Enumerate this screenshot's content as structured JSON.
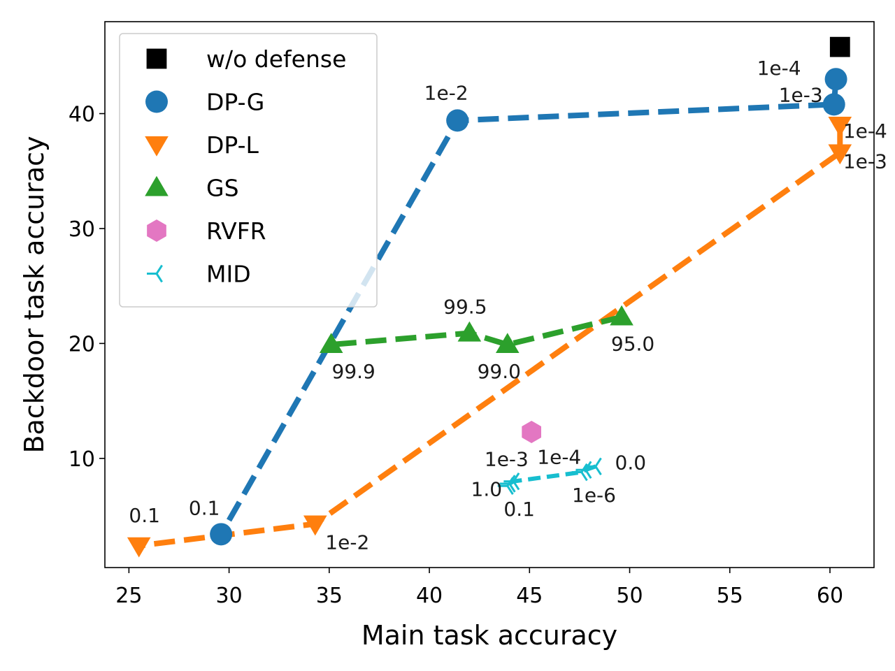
{
  "chart_data": {
    "type": "scatter",
    "xlabel": "Main task accuracy",
    "ylabel": "Backdoor task accuracy",
    "xlim": [
      23.8,
      62.2
    ],
    "ylim": [
      0.5,
      48.0
    ],
    "xticks": [
      25,
      30,
      35,
      40,
      45,
      50,
      55,
      60
    ],
    "yticks": [
      10,
      20,
      30,
      40
    ],
    "grid": false,
    "legend_position": "top-left",
    "series": [
      {
        "name": "w/o defense",
        "color": "#000000",
        "marker": "square",
        "line": false,
        "points": [
          {
            "x": 60.5,
            "y": 45.8,
            "label": ""
          }
        ]
      },
      {
        "name": "DP-G",
        "color": "#1f77b4",
        "marker": "circle",
        "line": true,
        "points": [
          {
            "x": 60.3,
            "y": 43.0,
            "label": "1e-4"
          },
          {
            "x": 60.2,
            "y": 40.8,
            "label": "1e-3"
          },
          {
            "x": 41.4,
            "y": 39.4,
            "label": "1e-2"
          },
          {
            "x": 29.6,
            "y": 3.4,
            "label": "0.1"
          }
        ]
      },
      {
        "name": "DP-L",
        "color": "#ff7f0e",
        "marker": "triangle-down",
        "line": true,
        "points": [
          {
            "x": 60.5,
            "y": 39.0,
            "label": "1e-4"
          },
          {
            "x": 60.5,
            "y": 36.6,
            "label": "1e-3"
          },
          {
            "x": 34.3,
            "y": 4.3,
            "label": "1e-2"
          },
          {
            "x": 25.5,
            "y": 2.4,
            "label": "0.1"
          }
        ]
      },
      {
        "name": "GS",
        "color": "#2ca02c",
        "marker": "triangle-up",
        "line": true,
        "points": [
          {
            "x": 49.6,
            "y": 22.3,
            "label": "95.0"
          },
          {
            "x": 43.9,
            "y": 19.9,
            "label": "99.0"
          },
          {
            "x": 42.0,
            "y": 20.9,
            "label": "99.5"
          },
          {
            "x": 35.1,
            "y": 19.9,
            "label": "99.9"
          }
        ]
      },
      {
        "name": "RVFR",
        "color": "#e377c2",
        "marker": "hexagon",
        "line": false,
        "points": [
          {
            "x": 45.1,
            "y": 12.3,
            "label": ""
          }
        ]
      },
      {
        "name": "MID",
        "color": "#17becf",
        "marker": "tri-left",
        "line": true,
        "points": [
          {
            "x": 48.3,
            "y": 9.3,
            "label": "0.0"
          },
          {
            "x": 47.8,
            "y": 9.0,
            "label": "1e-6"
          },
          {
            "x": 47.6,
            "y": 8.8,
            "label": "1e-4"
          },
          {
            "x": 44.2,
            "y": 8.0,
            "label": "1e-3"
          },
          {
            "x": 44.0,
            "y": 7.8,
            "label": "0.1"
          },
          {
            "x": 43.9,
            "y": 7.6,
            "label": "1.0"
          }
        ]
      }
    ]
  }
}
